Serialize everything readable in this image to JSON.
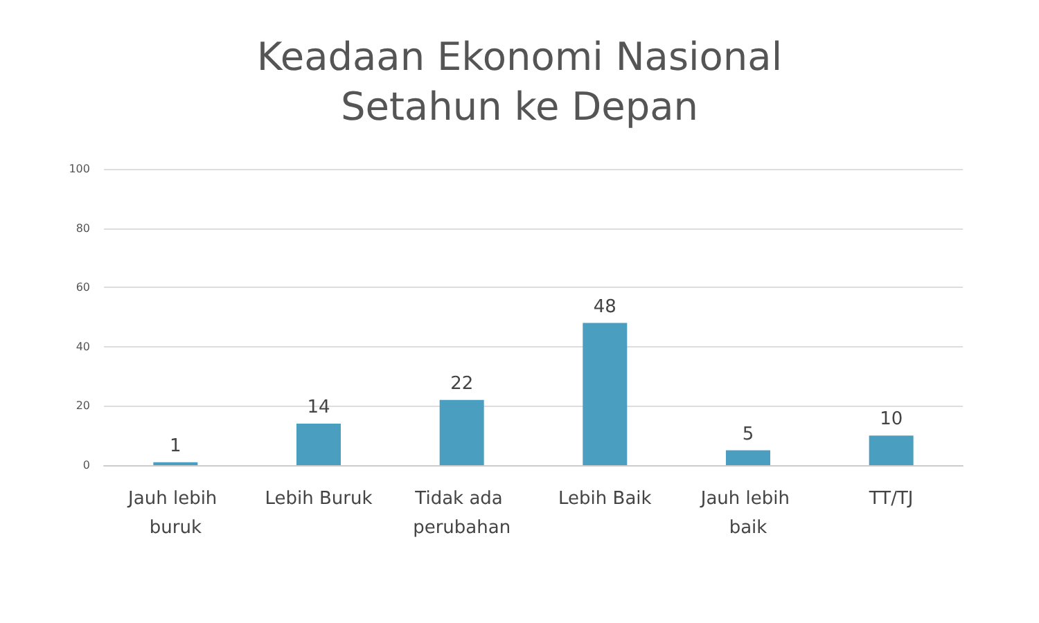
{
  "chart_data": {
    "type": "bar",
    "title": "Keadaan Ekonomi Nasional\nSetahun ke Depan",
    "categories": [
      "Jauh lebih buruk",
      "Lebih Buruk",
      "Tidak ada perubahan",
      "Lebih Baik",
      "Jauh lebih baik",
      "TT/TJ"
    ],
    "values": [
      1,
      14,
      22,
      48,
      5,
      10
    ],
    "color": "#4a9ebf",
    "ylim": [
      0,
      100
    ],
    "yticks": [
      0,
      20,
      40,
      60,
      80,
      100
    ],
    "grid": "y",
    "data_labels": true
  }
}
